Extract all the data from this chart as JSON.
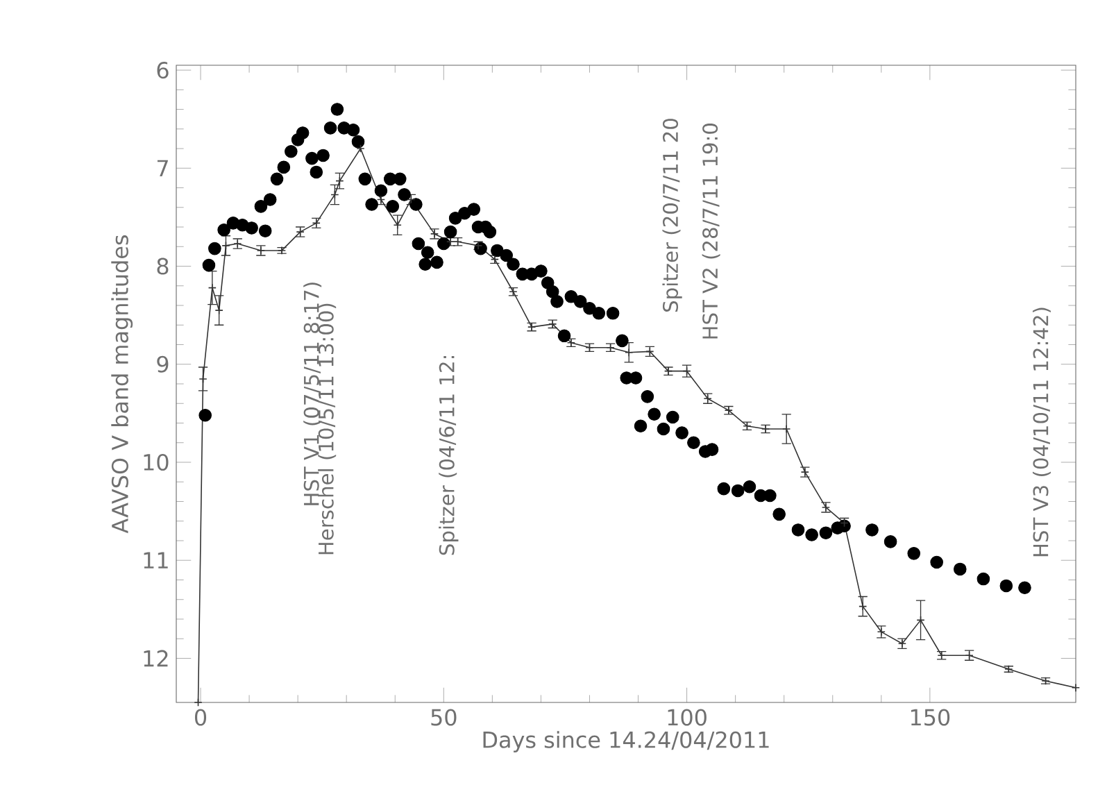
{
  "chart_data": {
    "type": "line",
    "xlabel": "Days since 14.24/04/2011",
    "ylabel": "AAVSO V band magnitudes",
    "xlim": [
      -5,
      180
    ],
    "ylim": [
      12.45,
      5.95
    ],
    "xticks": [
      0,
      50,
      100,
      150
    ],
    "yticks": [
      6,
      7,
      8,
      9,
      10,
      11,
      12
    ],
    "series": [
      {
        "type": "scatter",
        "marker": "circle",
        "color": "#000000",
        "x": [
          0.95,
          1.7,
          2.9,
          4.8,
          6.7,
          8.6,
          10.5,
          13.3,
          12.4,
          14.3,
          15.7,
          17.1,
          18.6,
          20,
          21,
          22.9,
          23.8,
          25.2,
          26.7,
          28.1,
          29.5,
          31.4,
          32.4,
          33.8,
          35.2,
          37.1,
          39,
          41,
          39.5,
          41.9,
          44.3,
          44.8,
          46.7,
          46.2,
          48.6,
          50,
          51.4,
          52.4,
          54.3,
          56.2,
          57.1,
          58.6,
          59.5,
          57.6,
          61,
          62.9,
          64.3,
          66.2,
          68.1,
          70,
          71.4,
          72.4,
          73.3,
          76.2,
          78.1,
          80,
          81.9,
          84.8,
          74.8,
          86.7,
          87.6,
          89.5,
          91.9,
          90.5,
          93.3,
          95.2,
          97.1,
          99,
          101.4,
          103.8,
          105.2,
          107.6,
          110.5,
          112.9,
          115.2,
          117.1,
          119,
          122.9,
          125.7,
          128.6,
          131,
          132.4,
          138.1,
          141.9,
          146.7,
          151.4,
          156.2,
          161,
          165.7,
          169.5
        ],
        "values": [
          9.52,
          7.99,
          7.82,
          7.63,
          7.56,
          7.58,
          7.61,
          7.64,
          7.39,
          7.32,
          7.11,
          6.99,
          6.83,
          6.71,
          6.64,
          6.9,
          7.04,
          6.87,
          6.59,
          6.4,
          6.59,
          6.61,
          6.73,
          7.11,
          7.37,
          7.23,
          7.11,
          7.11,
          7.39,
          7.27,
          7.37,
          7.77,
          7.86,
          7.98,
          7.96,
          7.77,
          7.65,
          7.51,
          7.46,
          7.42,
          7.6,
          7.6,
          7.65,
          7.82,
          7.84,
          7.89,
          7.98,
          8.08,
          8.08,
          8.05,
          8.17,
          8.26,
          8.36,
          8.31,
          8.36,
          8.43,
          8.48,
          8.48,
          8.71,
          8.76,
          9.14,
          9.14,
          9.33,
          9.63,
          9.51,
          9.66,
          9.54,
          9.7,
          9.8,
          9.89,
          9.87,
          10.27,
          10.29,
          10.25,
          10.34,
          10.34,
          10.53,
          10.69,
          10.74,
          10.72,
          10.67,
          10.65,
          10.69,
          10.81,
          10.93,
          11.02,
          11.09,
          11.19,
          11.26,
          11.28
        ]
      },
      {
        "marker": "cross",
        "color": "#333333",
        "x": [
          -0.5,
          0.5,
          2.4,
          3.8,
          5.2,
          7.6,
          12.4,
          16.7,
          20.5,
          23.8,
          27.6,
          28.6,
          32.9,
          37.1,
          40.5,
          43.3,
          48.1,
          51.4,
          52.9,
          57.1,
          60.5,
          64.3,
          68.1,
          72.4,
          76.2,
          80,
          84.3,
          88.1,
          92.4,
          96.2,
          100,
          104.3,
          108.6,
          112.4,
          116.2,
          120.5,
          124.3,
          128.6,
          132.4,
          136.2,
          140,
          144.3,
          148.1,
          152.4,
          158.1,
          166.2,
          173.8,
          180
        ],
        "values": [
          12.45,
          9.15,
          8.22,
          8.45,
          7.79,
          7.77,
          7.84,
          7.84,
          7.65,
          7.56,
          7.27,
          7.13,
          6.8,
          7.32,
          7.58,
          7.32,
          7.67,
          7.75,
          7.75,
          7.79,
          7.93,
          8.26,
          8.62,
          8.59,
          8.78,
          8.83,
          8.83,
          8.88,
          8.87,
          9.07,
          9.07,
          9.35,
          9.47,
          9.63,
          9.66,
          9.66,
          10.1,
          10.46,
          10.62,
          11.47,
          11.73,
          11.85,
          11.61,
          11.97,
          11.97,
          12.11,
          12.23,
          12.3
        ],
        "errors": [
          null,
          0.12,
          0.17,
          0.15,
          0.1,
          0.05,
          0.05,
          0.03,
          0.05,
          0.05,
          0.1,
          0.08,
          null,
          0.05,
          0.1,
          0.05,
          0.05,
          0.04,
          0.04,
          0.04,
          0.04,
          0.04,
          0.04,
          0.04,
          0.04,
          0.04,
          0.04,
          0.1,
          0.05,
          0.04,
          0.06,
          0.05,
          0.04,
          0.04,
          0.04,
          0.15,
          0.05,
          0.05,
          0.05,
          0.1,
          0.06,
          0.05,
          0.2,
          0.04,
          0.05,
          0.03,
          0.03,
          null
        ]
      }
    ],
    "annotations": [
      "HST V1 (07/5/11 8:17)",
      "Herschel (10/5/11 13:00)",
      "Spitzer (04/6/11 12:",
      "Spitzer (20/7/11 20",
      "HST V2 (28/7/11 19:0",
      "HST V3 (04/10/11 12:42)"
    ]
  }
}
